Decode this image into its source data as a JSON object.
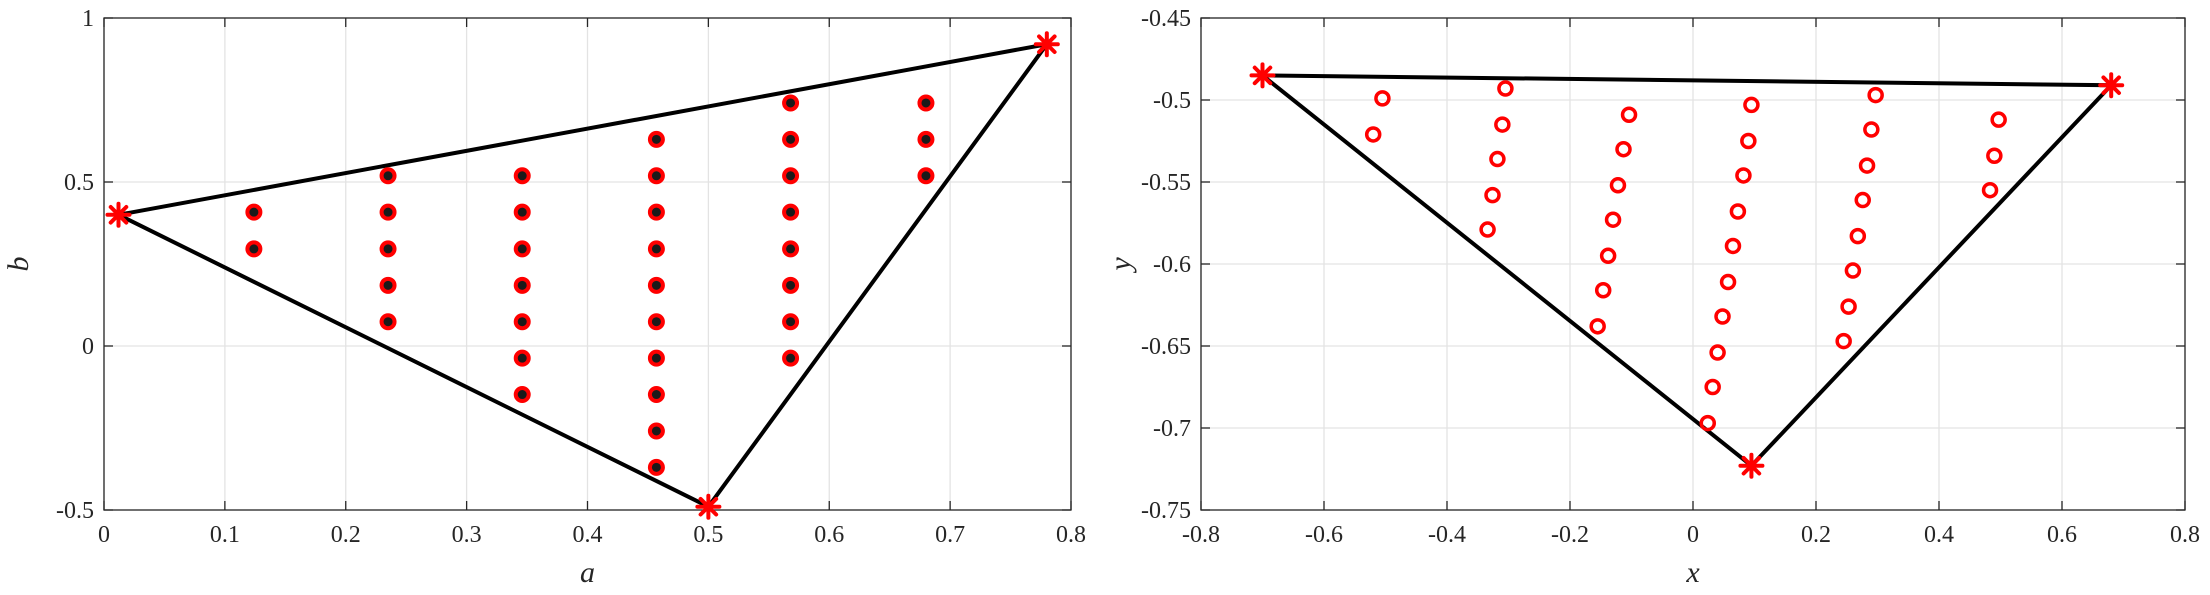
{
  "chart_data": [
    {
      "type": "scatter",
      "title": "",
      "xlabel": "a",
      "ylabel": "b",
      "xlim": [
        0,
        0.8
      ],
      "ylim": [
        -0.5,
        1
      ],
      "grid": true,
      "xticks": [
        "0",
        "0.1",
        "0.2",
        "0.3",
        "0.4",
        "0.5",
        "0.6",
        "0.7",
        "0.8"
      ],
      "yticks": [
        "-0.5",
        "0",
        "0.5",
        "1"
      ],
      "colors": {
        "marker": "#ff0000",
        "dot": "#1a1a1a",
        "line": "#000000"
      },
      "triangle": {
        "x": [
          0.012,
          0.78,
          0.5
        ],
        "y": [
          0.4,
          0.92,
          -0.49
        ]
      },
      "points": [
        {
          "x": 0.124,
          "y": 0.408
        },
        {
          "x": 0.124,
          "y": 0.296
        },
        {
          "x": 0.235,
          "y": 0.519
        },
        {
          "x": 0.235,
          "y": 0.408
        },
        {
          "x": 0.235,
          "y": 0.296
        },
        {
          "x": 0.235,
          "y": 0.185
        },
        {
          "x": 0.235,
          "y": 0.074
        },
        {
          "x": 0.346,
          "y": 0.519
        },
        {
          "x": 0.346,
          "y": 0.408
        },
        {
          "x": 0.346,
          "y": 0.296
        },
        {
          "x": 0.346,
          "y": 0.185
        },
        {
          "x": 0.346,
          "y": 0.074
        },
        {
          "x": 0.346,
          "y": -0.037
        },
        {
          "x": 0.346,
          "y": -0.148
        },
        {
          "x": 0.457,
          "y": 0.63
        },
        {
          "x": 0.457,
          "y": 0.519
        },
        {
          "x": 0.457,
          "y": 0.408
        },
        {
          "x": 0.457,
          "y": 0.296
        },
        {
          "x": 0.457,
          "y": 0.185
        },
        {
          "x": 0.457,
          "y": 0.074
        },
        {
          "x": 0.457,
          "y": -0.037
        },
        {
          "x": 0.457,
          "y": -0.148
        },
        {
          "x": 0.457,
          "y": -0.259
        },
        {
          "x": 0.457,
          "y": -0.37
        },
        {
          "x": 0.568,
          "y": 0.741
        },
        {
          "x": 0.568,
          "y": 0.63
        },
        {
          "x": 0.568,
          "y": 0.519
        },
        {
          "x": 0.568,
          "y": 0.408
        },
        {
          "x": 0.568,
          "y": 0.296
        },
        {
          "x": 0.568,
          "y": 0.185
        },
        {
          "x": 0.568,
          "y": 0.074
        },
        {
          "x": 0.568,
          "y": -0.037
        },
        {
          "x": 0.68,
          "y": 0.741
        },
        {
          "x": 0.68,
          "y": 0.63
        },
        {
          "x": 0.68,
          "y": 0.519
        }
      ]
    },
    {
      "type": "scatter",
      "title": "",
      "xlabel": "x",
      "ylabel": "y",
      "xlim": [
        -0.8,
        0.8
      ],
      "ylim": [
        -0.75,
        -0.45
      ],
      "grid": true,
      "xticks": [
        "-0.8",
        "-0.6",
        "-0.4",
        "-0.2",
        "0",
        "0.2",
        "0.4",
        "0.6",
        "0.8"
      ],
      "yticks": [
        "-0.75",
        "-0.7",
        "-0.65",
        "-0.6",
        "-0.55",
        "-0.5",
        "-0.45"
      ],
      "colors": {
        "marker": "#ff0000",
        "line": "#000000"
      },
      "triangle": {
        "x": [
          -0.7,
          0.68,
          0.095
        ],
        "y": [
          -0.485,
          -0.491,
          -0.723
        ]
      },
      "points": [
        {
          "x": -0.505,
          "y": -0.499
        },
        {
          "x": -0.52,
          "y": -0.521
        },
        {
          "x": -0.305,
          "y": -0.493
        },
        {
          "x": -0.31,
          "y": -0.515
        },
        {
          "x": -0.318,
          "y": -0.536
        },
        {
          "x": -0.326,
          "y": -0.558
        },
        {
          "x": -0.334,
          "y": -0.579
        },
        {
          "x": -0.104,
          "y": -0.509
        },
        {
          "x": -0.113,
          "y": -0.53
        },
        {
          "x": -0.122,
          "y": -0.552
        },
        {
          "x": -0.13,
          "y": -0.573
        },
        {
          "x": -0.138,
          "y": -0.595
        },
        {
          "x": -0.146,
          "y": -0.616
        },
        {
          "x": -0.155,
          "y": -0.638
        },
        {
          "x": 0.095,
          "y": -0.503
        },
        {
          "x": 0.09,
          "y": -0.525
        },
        {
          "x": 0.082,
          "y": -0.546
        },
        {
          "x": 0.073,
          "y": -0.568
        },
        {
          "x": 0.065,
          "y": -0.589
        },
        {
          "x": 0.057,
          "y": -0.611
        },
        {
          "x": 0.048,
          "y": -0.632
        },
        {
          "x": 0.04,
          "y": -0.654
        },
        {
          "x": 0.032,
          "y": -0.675
        },
        {
          "x": 0.024,
          "y": -0.697
        },
        {
          "x": 0.297,
          "y": -0.497
        },
        {
          "x": 0.29,
          "y": -0.518
        },
        {
          "x": 0.283,
          "y": -0.54
        },
        {
          "x": 0.276,
          "y": -0.561
        },
        {
          "x": 0.268,
          "y": -0.583
        },
        {
          "x": 0.26,
          "y": -0.604
        },
        {
          "x": 0.253,
          "y": -0.626
        },
        {
          "x": 0.245,
          "y": -0.647
        },
        {
          "x": 0.497,
          "y": -0.512
        },
        {
          "x": 0.49,
          "y": -0.534
        },
        {
          "x": 0.483,
          "y": -0.555
        }
      ]
    }
  ]
}
